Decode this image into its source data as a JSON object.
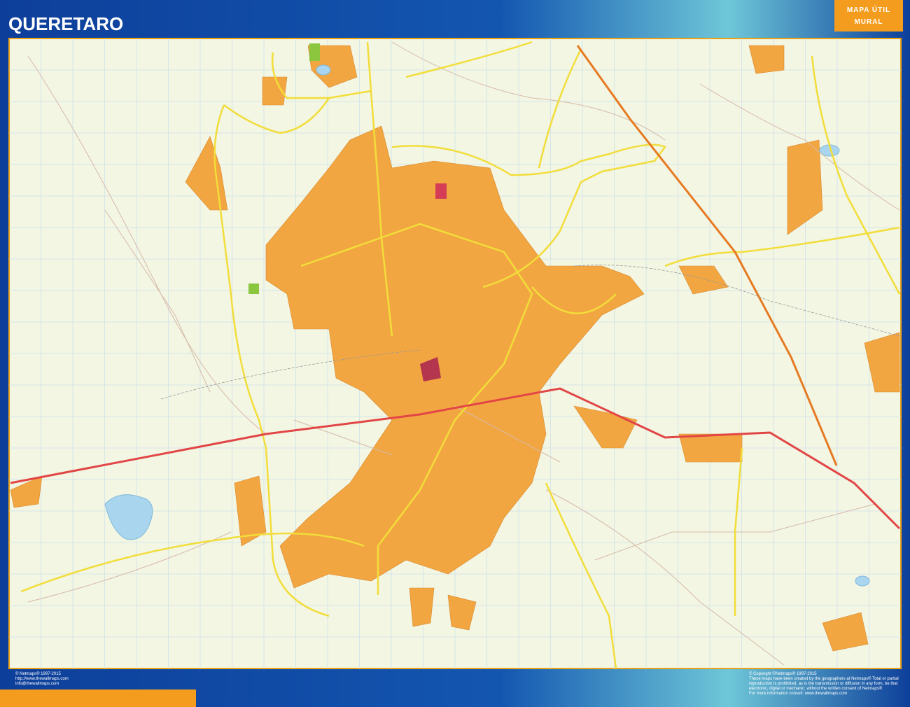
{
  "header": {
    "title": "QUERETARO",
    "badge": [
      "MAPA ÚTIL",
      "MURAL"
    ]
  },
  "footer": {
    "left": [
      "© Netmaps® 1997-2015",
      "http://www.thewallmaps.com",
      "info@thewallmaps.com"
    ],
    "right": [
      "© Copyright ©Netmaps® 1997-2015",
      "These maps have been created by the geographers at Netmaps® Total or partial",
      "reproduction is prohibited; as is the transmission or diffusion in any form, be that",
      "electronic, digital or mechanic; without the written consent of Netmaps®",
      "For more information consult: www.thewallmaps.com"
    ]
  }
}
